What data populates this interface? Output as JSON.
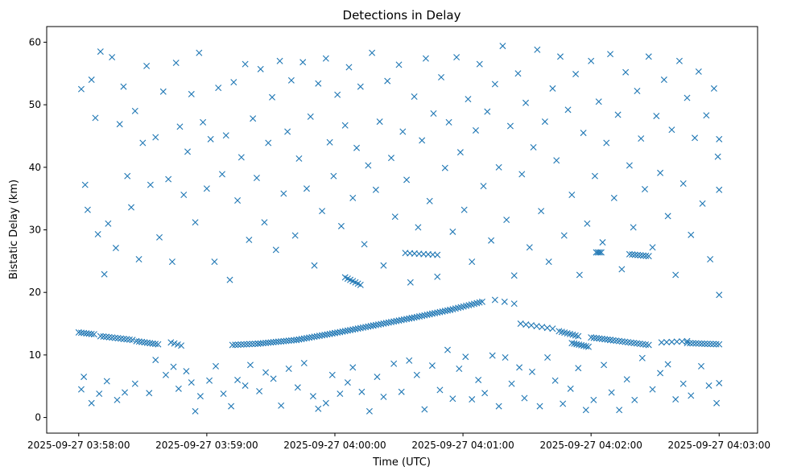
{
  "chart_data": {
    "type": "scatter",
    "title": "Detections in Delay",
    "xlabel": "Time (UTC)",
    "ylabel": "Bistatic Delay (km)",
    "xlim": [
      -0.25,
      5.3
    ],
    "ylim": [
      -2.5,
      62.5
    ],
    "x_unit": "minutes after 2025-09-27 03:58:00",
    "x_ticks": [
      {
        "value": 0,
        "label": "2025-09-27 03:58:00"
      },
      {
        "value": 1,
        "label": "2025-09-27 03:59:00"
      },
      {
        "value": 2,
        "label": "2025-09-27 04:00:00"
      },
      {
        "value": 3,
        "label": "2025-09-27 04:01:00"
      },
      {
        "value": 4,
        "label": "2025-09-27 04:02:00"
      },
      {
        "value": 5,
        "label": "2025-09-27 04:03:00"
      }
    ],
    "y_ticks": [
      0,
      10,
      20,
      30,
      40,
      50,
      60
    ],
    "grid": false,
    "series": [
      {
        "name": "detections",
        "marker": "x",
        "color": "#1f77b4",
        "track_segments": [
          {
            "t_start": 0.0,
            "t_end": 0.12,
            "d_start": 13.6,
            "d_end": 13.3,
            "n": 7
          },
          {
            "t_start": 0.17,
            "t_end": 0.42,
            "d_start": 13.0,
            "d_end": 12.4,
            "n": 12
          },
          {
            "t_start": 0.45,
            "t_end": 0.62,
            "d_start": 12.2,
            "d_end": 11.7,
            "n": 9
          },
          {
            "t_start": 0.72,
            "t_end": 0.8,
            "d_start": 12.0,
            "d_end": 11.5,
            "n": 4
          },
          {
            "t_start": 1.2,
            "t_end": 1.4,
            "d_start": 11.6,
            "d_end": 11.8,
            "n": 10
          },
          {
            "t_start": 1.4,
            "t_end": 1.7,
            "d_start": 11.8,
            "d_end": 12.4,
            "n": 16
          },
          {
            "t_start": 1.7,
            "t_end": 2.0,
            "d_start": 12.4,
            "d_end": 13.5,
            "n": 16
          },
          {
            "t_start": 2.0,
            "t_end": 2.3,
            "d_start": 13.5,
            "d_end": 14.7,
            "n": 16
          },
          {
            "t_start": 2.3,
            "t_end": 2.6,
            "d_start": 14.7,
            "d_end": 15.9,
            "n": 16
          },
          {
            "t_start": 2.6,
            "t_end": 2.9,
            "d_start": 15.9,
            "d_end": 17.2,
            "n": 16
          },
          {
            "t_start": 2.9,
            "t_end": 3.15,
            "d_start": 17.2,
            "d_end": 18.5,
            "n": 13
          },
          {
            "t_start": 3.25,
            "t_end": 3.4,
            "d_start": 18.8,
            "d_end": 18.2,
            "n": 3
          },
          {
            "t_start": 3.45,
            "t_end": 3.7,
            "d_start": 15.0,
            "d_end": 14.2,
            "n": 7
          },
          {
            "t_start": 3.75,
            "t_end": 3.9,
            "d_start": 13.8,
            "d_end": 13.0,
            "n": 8
          },
          {
            "t_start": 3.85,
            "t_end": 3.98,
            "d_start": 11.9,
            "d_end": 11.3,
            "n": 8
          },
          {
            "t_start": 4.0,
            "t_end": 4.15,
            "d_start": 12.8,
            "d_end": 12.4,
            "n": 8
          },
          {
            "t_start": 4.15,
            "t_end": 4.45,
            "d_start": 12.4,
            "d_end": 11.6,
            "n": 14
          },
          {
            "t_start": 4.55,
            "t_end": 4.75,
            "d_start": 12.0,
            "d_end": 12.2,
            "n": 6
          },
          {
            "t_start": 4.75,
            "t_end": 5.0,
            "d_start": 11.9,
            "d_end": 11.7,
            "n": 12
          },
          {
            "t_start": 4.04,
            "t_end": 4.08,
            "d_start": 26.4,
            "d_end": 26.4,
            "n": 4
          },
          {
            "t_start": 4.3,
            "t_end": 4.45,
            "d_start": 26.1,
            "d_end": 25.8,
            "n": 8
          },
          {
            "t_start": 2.55,
            "t_end": 2.8,
            "d_start": 26.3,
            "d_end": 26.0,
            "n": 8
          },
          {
            "t_start": 2.08,
            "t_end": 2.2,
            "d_start": 22.4,
            "d_end": 21.2,
            "n": 7
          }
        ],
        "scatter_points": [
          [
            0.02,
            4.5
          ],
          [
            0.04,
            6.5
          ],
          [
            0.1,
            2.3
          ],
          [
            0.16,
            3.8
          ],
          [
            0.22,
            5.8
          ],
          [
            0.3,
            2.8
          ],
          [
            0.36,
            4.0
          ],
          [
            0.44,
            5.4
          ],
          [
            0.55,
            3.9
          ],
          [
            0.6,
            9.2
          ],
          [
            0.68,
            6.8
          ],
          [
            0.74,
            8.1
          ],
          [
            0.78,
            4.6
          ],
          [
            0.84,
            7.4
          ],
          [
            0.88,
            5.6
          ],
          [
            0.91,
            1.0
          ],
          [
            0.95,
            3.4
          ],
          [
            1.02,
            5.9
          ],
          [
            1.07,
            8.2
          ],
          [
            1.13,
            3.8
          ],
          [
            1.19,
            1.8
          ],
          [
            1.24,
            6.0
          ],
          [
            1.3,
            5.1
          ],
          [
            1.34,
            8.4
          ],
          [
            1.41,
            4.2
          ],
          [
            1.46,
            7.2
          ],
          [
            1.52,
            6.2
          ],
          [
            1.58,
            1.9
          ],
          [
            1.64,
            7.8
          ],
          [
            1.71,
            4.8
          ],
          [
            1.76,
            8.7
          ],
          [
            1.83,
            3.4
          ],
          [
            1.87,
            1.4
          ],
          [
            1.93,
            2.3
          ],
          [
            1.98,
            6.8
          ],
          [
            2.04,
            3.8
          ],
          [
            2.1,
            5.6
          ],
          [
            2.14,
            8.0
          ],
          [
            2.21,
            4.1
          ],
          [
            2.27,
            1.0
          ],
          [
            2.33,
            6.5
          ],
          [
            2.38,
            3.3
          ],
          [
            2.46,
            8.6
          ],
          [
            2.52,
            4.1
          ],
          [
            2.58,
            9.1
          ],
          [
            2.64,
            6.8
          ],
          [
            2.7,
            1.3
          ],
          [
            2.76,
            8.3
          ],
          [
            2.82,
            4.4
          ],
          [
            2.88,
            10.8
          ],
          [
            2.92,
            3.0
          ],
          [
            2.97,
            7.8
          ],
          [
            3.02,
            9.7
          ],
          [
            3.07,
            2.9
          ],
          [
            3.12,
            6.0
          ],
          [
            3.17,
            3.9
          ],
          [
            3.23,
            9.9
          ],
          [
            3.28,
            1.8
          ],
          [
            3.33,
            9.6
          ],
          [
            3.38,
            5.4
          ],
          [
            3.44,
            8.0
          ],
          [
            3.48,
            3.1
          ],
          [
            3.54,
            7.3
          ],
          [
            3.6,
            1.8
          ],
          [
            3.66,
            9.6
          ],
          [
            3.72,
            5.9
          ],
          [
            3.78,
            2.2
          ],
          [
            3.84,
            4.6
          ],
          [
            3.9,
            7.9
          ],
          [
            3.96,
            1.2
          ],
          [
            4.02,
            2.8
          ],
          [
            4.1,
            8.4
          ],
          [
            4.16,
            4.0
          ],
          [
            4.22,
            1.2
          ],
          [
            4.28,
            6.1
          ],
          [
            4.34,
            2.8
          ],
          [
            4.4,
            9.5
          ],
          [
            4.48,
            4.5
          ],
          [
            4.54,
            7.1
          ],
          [
            4.6,
            8.5
          ],
          [
            4.66,
            2.9
          ],
          [
            4.72,
            5.4
          ],
          [
            4.78,
            3.5
          ],
          [
            4.86,
            8.2
          ],
          [
            4.92,
            5.1
          ],
          [
            4.98,
            2.3
          ],
          [
            5.0,
            5.5
          ],
          [
            0.02,
            52.5
          ],
          [
            0.05,
            37.2
          ],
          [
            0.07,
            33.2
          ],
          [
            0.1,
            54.0
          ],
          [
            0.13,
            47.9
          ],
          [
            0.15,
            29.3
          ],
          [
            0.17,
            58.5
          ],
          [
            0.2,
            22.9
          ],
          [
            0.23,
            31.0
          ],
          [
            0.26,
            57.6
          ],
          [
            0.29,
            27.1
          ],
          [
            0.32,
            46.9
          ],
          [
            0.35,
            52.9
          ],
          [
            0.38,
            38.6
          ],
          [
            0.41,
            33.6
          ],
          [
            0.44,
            49.0
          ],
          [
            0.47,
            25.3
          ],
          [
            0.5,
            43.9
          ],
          [
            0.53,
            56.2
          ],
          [
            0.56,
            37.2
          ],
          [
            0.6,
            44.8
          ],
          [
            0.63,
            28.8
          ],
          [
            0.66,
            52.1
          ],
          [
            0.7,
            38.1
          ],
          [
            0.73,
            24.9
          ],
          [
            0.76,
            56.7
          ],
          [
            0.79,
            46.5
          ],
          [
            0.82,
            35.6
          ],
          [
            0.85,
            42.5
          ],
          [
            0.88,
            51.7
          ],
          [
            0.91,
            31.2
          ],
          [
            0.94,
            58.3
          ],
          [
            0.97,
            47.2
          ],
          [
            1.0,
            36.6
          ],
          [
            1.03,
            44.5
          ],
          [
            1.06,
            24.9
          ],
          [
            1.09,
            52.7
          ],
          [
            1.12,
            38.9
          ],
          [
            1.15,
            45.1
          ],
          [
            1.18,
            22.0
          ],
          [
            1.21,
            53.6
          ],
          [
            1.24,
            34.7
          ],
          [
            1.27,
            41.6
          ],
          [
            1.3,
            56.5
          ],
          [
            1.33,
            28.4
          ],
          [
            1.36,
            47.8
          ],
          [
            1.39,
            38.3
          ],
          [
            1.42,
            55.7
          ],
          [
            1.45,
            31.2
          ],
          [
            1.48,
            43.9
          ],
          [
            1.51,
            51.2
          ],
          [
            1.54,
            26.8
          ],
          [
            1.57,
            57.0
          ],
          [
            1.6,
            35.8
          ],
          [
            1.63,
            45.7
          ],
          [
            1.66,
            53.9
          ],
          [
            1.69,
            29.1
          ],
          [
            1.72,
            41.4
          ],
          [
            1.75,
            56.8
          ],
          [
            1.78,
            36.6
          ],
          [
            1.81,
            48.1
          ],
          [
            1.84,
            24.3
          ],
          [
            1.87,
            53.4
          ],
          [
            1.9,
            33.0
          ],
          [
            1.93,
            57.4
          ],
          [
            1.96,
            44.0
          ],
          [
            1.99,
            38.6
          ],
          [
            2.02,
            51.6
          ],
          [
            2.05,
            30.6
          ],
          [
            2.08,
            46.7
          ],
          [
            2.11,
            56.0
          ],
          [
            2.14,
            35.1
          ],
          [
            2.17,
            43.1
          ],
          [
            2.2,
            52.9
          ],
          [
            2.23,
            27.7
          ],
          [
            2.26,
            40.3
          ],
          [
            2.29,
            58.3
          ],
          [
            2.32,
            36.4
          ],
          [
            2.35,
            47.3
          ],
          [
            2.38,
            24.3
          ],
          [
            2.41,
            53.8
          ],
          [
            2.44,
            41.5
          ],
          [
            2.47,
            32.1
          ],
          [
            2.5,
            56.4
          ],
          [
            2.53,
            45.7
          ],
          [
            2.56,
            38.0
          ],
          [
            2.59,
            21.6
          ],
          [
            2.62,
            51.3
          ],
          [
            2.65,
            30.4
          ],
          [
            2.68,
            44.3
          ],
          [
            2.71,
            57.4
          ],
          [
            2.74,
            34.6
          ],
          [
            2.77,
            48.6
          ],
          [
            2.8,
            22.5
          ],
          [
            2.83,
            54.4
          ],
          [
            2.86,
            39.9
          ],
          [
            2.89,
            47.2
          ],
          [
            2.92,
            29.7
          ],
          [
            2.95,
            57.6
          ],
          [
            2.98,
            42.4
          ],
          [
            3.01,
            33.2
          ],
          [
            3.04,
            50.9
          ],
          [
            3.07,
            24.9
          ],
          [
            3.1,
            45.9
          ],
          [
            3.13,
            56.5
          ],
          [
            3.16,
            37.0
          ],
          [
            3.19,
            48.9
          ],
          [
            3.22,
            28.3
          ],
          [
            3.25,
            53.3
          ],
          [
            3.28,
            40.0
          ],
          [
            3.31,
            59.4
          ],
          [
            3.34,
            31.6
          ],
          [
            3.37,
            46.6
          ],
          [
            3.4,
            22.7
          ],
          [
            3.43,
            55.0
          ],
          [
            3.46,
            38.9
          ],
          [
            3.49,
            50.3
          ],
          [
            3.52,
            27.2
          ],
          [
            3.55,
            43.2
          ],
          [
            3.58,
            58.8
          ],
          [
            3.61,
            33.0
          ],
          [
            3.64,
            47.3
          ],
          [
            3.67,
            24.9
          ],
          [
            3.7,
            52.6
          ],
          [
            3.73,
            41.1
          ],
          [
            3.76,
            57.7
          ],
          [
            3.79,
            29.1
          ],
          [
            3.82,
            49.2
          ],
          [
            3.85,
            35.6
          ],
          [
            3.88,
            54.9
          ],
          [
            3.91,
            22.8
          ],
          [
            3.94,
            45.5
          ],
          [
            3.97,
            31.0
          ],
          [
            4.0,
            57.0
          ],
          [
            4.03,
            38.6
          ],
          [
            4.06,
            50.5
          ],
          [
            4.09,
            28.0
          ],
          [
            4.12,
            43.9
          ],
          [
            4.15,
            58.1
          ],
          [
            4.18,
            35.1
          ],
          [
            4.21,
            48.4
          ],
          [
            4.24,
            23.7
          ],
          [
            4.27,
            55.2
          ],
          [
            4.3,
            40.3
          ],
          [
            4.33,
            30.4
          ],
          [
            4.36,
            52.2
          ],
          [
            4.39,
            44.6
          ],
          [
            4.42,
            36.5
          ],
          [
            4.45,
            57.7
          ],
          [
            4.48,
            27.2
          ],
          [
            4.51,
            48.2
          ],
          [
            4.54,
            39.1
          ],
          [
            4.57,
            54.0
          ],
          [
            4.6,
            32.2
          ],
          [
            4.63,
            46.0
          ],
          [
            4.66,
            22.8
          ],
          [
            4.69,
            57.0
          ],
          [
            4.72,
            37.4
          ],
          [
            4.75,
            51.1
          ],
          [
            4.78,
            29.2
          ],
          [
            4.81,
            44.7
          ],
          [
            4.84,
            55.3
          ],
          [
            4.87,
            34.2
          ],
          [
            4.9,
            48.3
          ],
          [
            4.93,
            25.3
          ],
          [
            4.96,
            52.6
          ],
          [
            4.99,
            41.7
          ],
          [
            5.0,
            36.4
          ],
          [
            5.0,
            44.5
          ],
          [
            5.0,
            19.6
          ]
        ]
      }
    ]
  }
}
